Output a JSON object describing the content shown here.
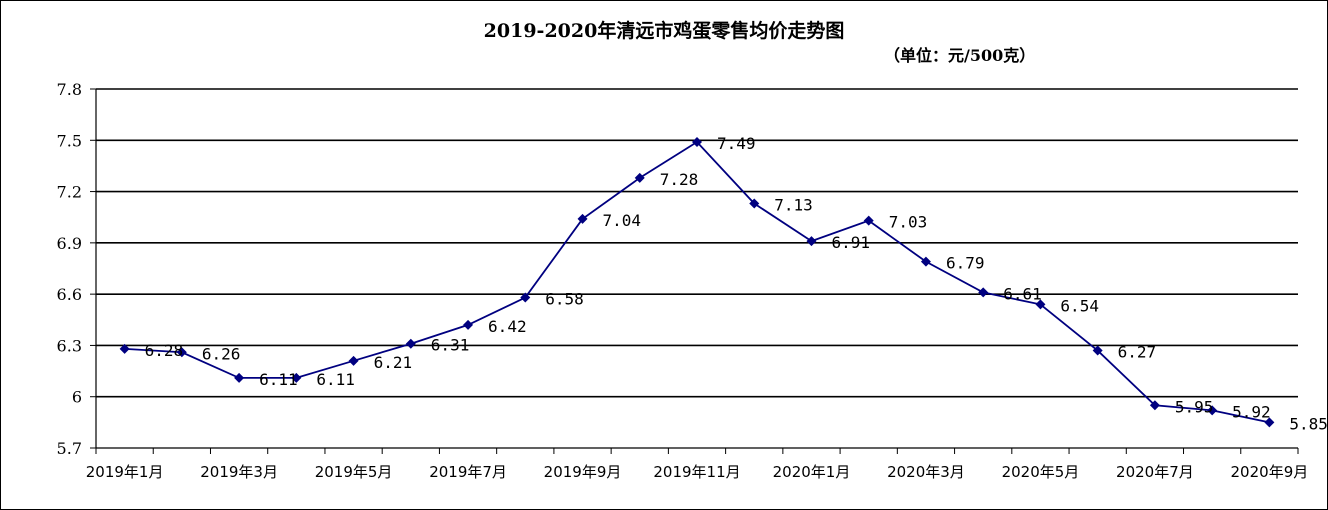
{
  "chart_data": {
    "type": "line",
    "title": "2019-2020年清远市鸡蛋零售均价走势图",
    "subtitle": "（单位：元/500克）",
    "x": [
      "2019年1月",
      "2019年2月",
      "2019年3月",
      "2019年4月",
      "2019年5月",
      "2019年6月",
      "2019年7月",
      "2019年8月",
      "2019年9月",
      "2019年10月",
      "2019年11月",
      "2019年12月",
      "2020年1月",
      "2020年2月",
      "2020年3月",
      "2020年4月",
      "2020年5月",
      "2020年6月",
      "2020年7月",
      "2020年8月",
      "2020年9月"
    ],
    "x_tick_labels": [
      "2019年1月",
      "2019年3月",
      "2019年5月",
      "2019年7月",
      "2019年9月",
      "2019年11月",
      "2020年1月",
      "2020年3月",
      "2020年5月",
      "2020年7月",
      "2020年9月"
    ],
    "series": [
      {
        "values": [
          6.28,
          6.26,
          6.11,
          6.11,
          6.21,
          6.31,
          6.42,
          6.58,
          7.04,
          7.28,
          7.49,
          7.13,
          6.91,
          7.03,
          6.79,
          6.61,
          6.54,
          6.27,
          5.95,
          5.92,
          5.85
        ],
        "labels": [
          "6.28",
          "6.26",
          "6.11",
          "6.11",
          "6.21",
          "6.31",
          "6.42",
          "6.58",
          "7.04",
          "7.28",
          "7.49",
          "7.13",
          "6.91",
          "7.03",
          "6.79",
          "6.61",
          "6.54",
          "6.27",
          "5.95",
          "5.92",
          "5.85"
        ],
        "color": "#000080",
        "marker": "diamond"
      }
    ],
    "y_ticks": [
      "5.7",
      "6",
      "6.3",
      "6.6",
      "6.9",
      "7.2",
      "7.5",
      "7.8"
    ],
    "ylim": [
      5.7,
      7.8
    ],
    "ystep": 0.3,
    "grid": true,
    "legend": "none"
  }
}
